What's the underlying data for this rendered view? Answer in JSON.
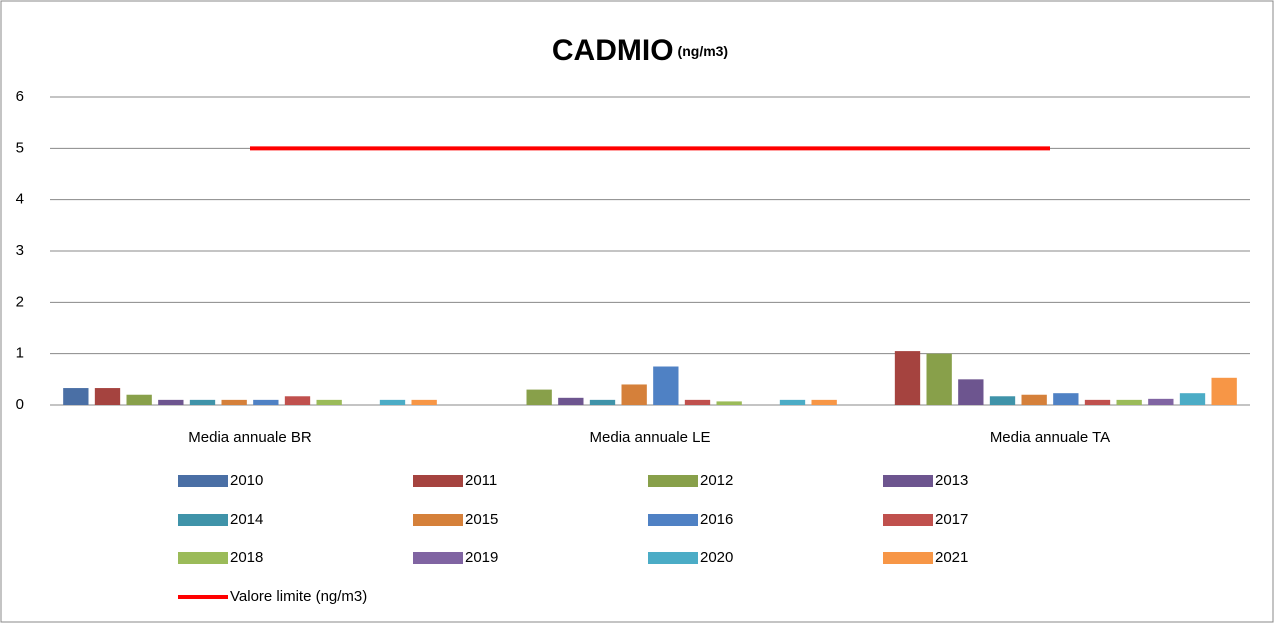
{
  "chart_data": {
    "type": "bar",
    "title": "CADMIO",
    "title_unit": "(ng/m3)",
    "categories": [
      "Media annuale  BR",
      "Media annuale  LE",
      "Media annuale  TA"
    ],
    "ylim": [
      0,
      6
    ],
    "yticks": [
      0,
      1,
      2,
      3,
      4,
      5,
      6
    ],
    "grid": true,
    "series": [
      {
        "name": "2010",
        "color": "#4a6fa5",
        "values": [
          0.33,
          null,
          null
        ]
      },
      {
        "name": "2011",
        "color": "#a5433f",
        "values": [
          0.33,
          null,
          1.05
        ]
      },
      {
        "name": "2012",
        "color": "#88a04a",
        "values": [
          0.2,
          0.3,
          1.0
        ]
      },
      {
        "name": "2013",
        "color": "#6d558f",
        "values": [
          0.1,
          0.14,
          0.5
        ]
      },
      {
        "name": "2014",
        "color": "#3f93a9",
        "values": [
          0.1,
          0.1,
          0.17
        ]
      },
      {
        "name": "2015",
        "color": "#d5803a",
        "values": [
          0.1,
          0.4,
          0.2
        ]
      },
      {
        "name": "2016",
        "color": "#4f81c4",
        "values": [
          0.1,
          0.75,
          0.23
        ]
      },
      {
        "name": "2017",
        "color": "#c0504d",
        "values": [
          0.17,
          0.1,
          0.1
        ]
      },
      {
        "name": "2018",
        "color": "#9bbb59",
        "values": [
          0.1,
          0.07,
          0.1
        ]
      },
      {
        "name": "2019",
        "color": "#8064a2",
        "values": [
          null,
          null,
          0.12
        ]
      },
      {
        "name": "2020",
        "color": "#4bacc6",
        "values": [
          0.1,
          0.1,
          0.23
        ]
      },
      {
        "name": "2021",
        "color": "#f79646",
        "values": [
          0.1,
          0.1,
          0.53
        ]
      }
    ],
    "line": {
      "name": "Valore limite (ng/m3)",
      "color": "#ff0000",
      "values": [
        5,
        5,
        5
      ]
    }
  }
}
